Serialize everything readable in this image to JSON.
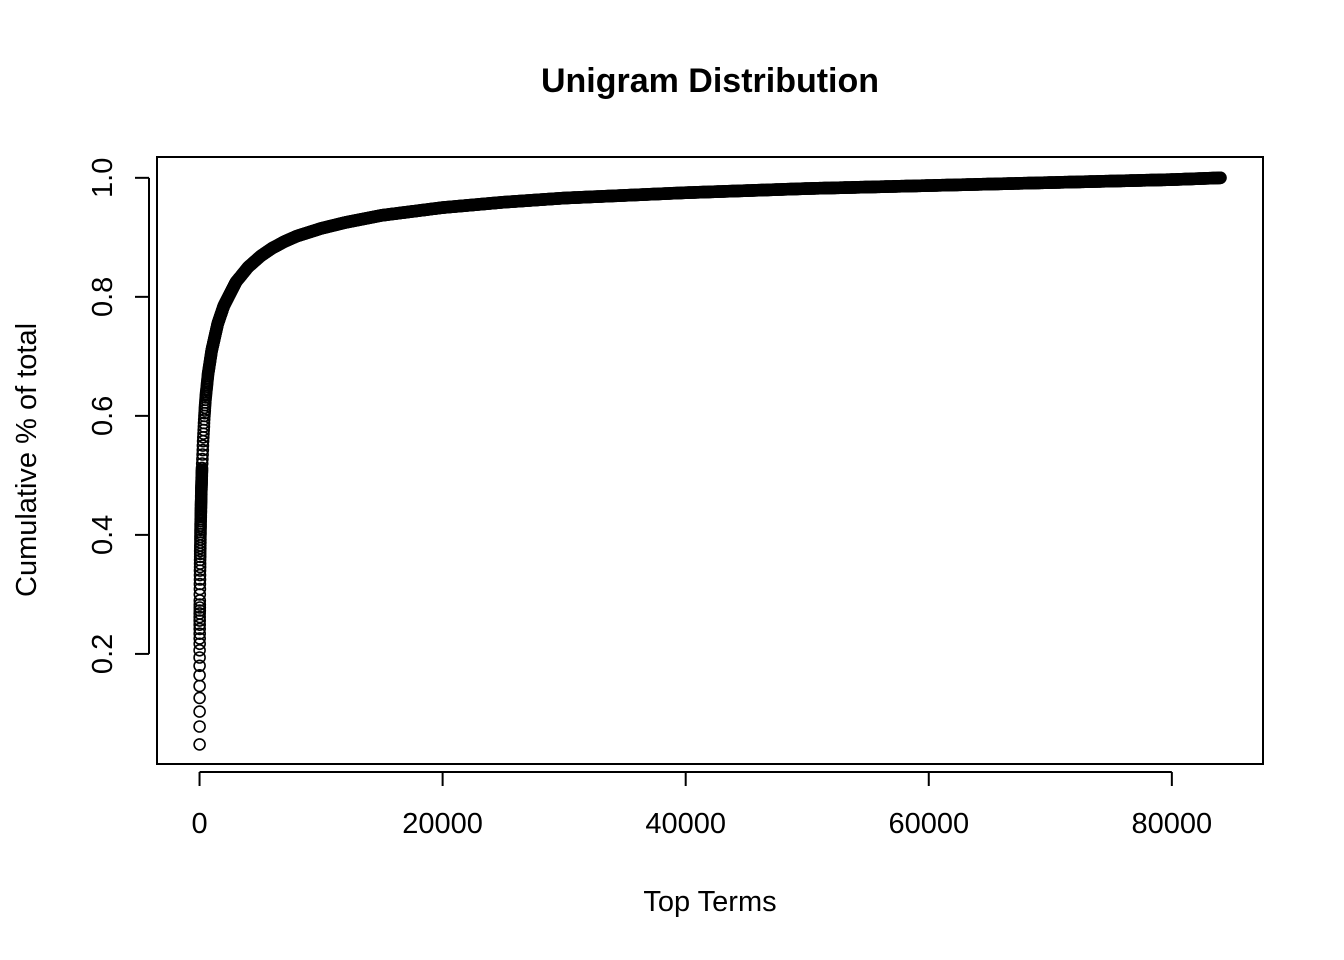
{
  "chart_data": {
    "type": "scatter",
    "title": "Unigram Distribution",
    "xlabel": "Top Terms",
    "ylabel": "Cumulative % of total",
    "xlim": [
      -3500,
      87500
    ],
    "ylim": [
      0.015,
      1.035
    ],
    "x_ticks": [
      0,
      20000,
      40000,
      60000,
      80000
    ],
    "x_tick_labels": [
      "0",
      "20000",
      "40000",
      "60000",
      "80000"
    ],
    "y_ticks": [
      0.2,
      0.4,
      0.6,
      0.8,
      1.0
    ],
    "y_tick_labels": [
      "0.2",
      "0.4",
      "0.6",
      "0.8",
      "1.0"
    ],
    "grid": false,
    "legend": "none",
    "marker": "open-circle",
    "color": "#000000",
    "total_terms": 84000,
    "series": [
      {
        "x": [
          1,
          2,
          3,
          4,
          5,
          6,
          7,
          8,
          9,
          10,
          11,
          12,
          13,
          14,
          15,
          16,
          17,
          18,
          19,
          20,
          25,
          30,
          40,
          50,
          75,
          100,
          150,
          200,
          300,
          400,
          500,
          700,
          1000,
          1500,
          2000,
          3000,
          4000,
          5000,
          6000,
          7000,
          8000,
          10000,
          12000,
          15000,
          20000,
          25000,
          30000,
          40000,
          50000,
          60000,
          70000,
          80000,
          84000
        ],
        "y": [
          0.048,
          0.078,
          0.103,
          0.126,
          0.146,
          0.164,
          0.18,
          0.194,
          0.206,
          0.217,
          0.226,
          0.234,
          0.242,
          0.249,
          0.256,
          0.262,
          0.268,
          0.273,
          0.278,
          0.283,
          0.3,
          0.315,
          0.34,
          0.36,
          0.4,
          0.43,
          0.475,
          0.51,
          0.56,
          0.6,
          0.63,
          0.67,
          0.71,
          0.755,
          0.785,
          0.825,
          0.85,
          0.868,
          0.882,
          0.893,
          0.902,
          0.915,
          0.925,
          0.937,
          0.95,
          0.959,
          0.966,
          0.975,
          0.982,
          0.987,
          0.992,
          0.997,
          1.0
        ]
      }
    ]
  }
}
